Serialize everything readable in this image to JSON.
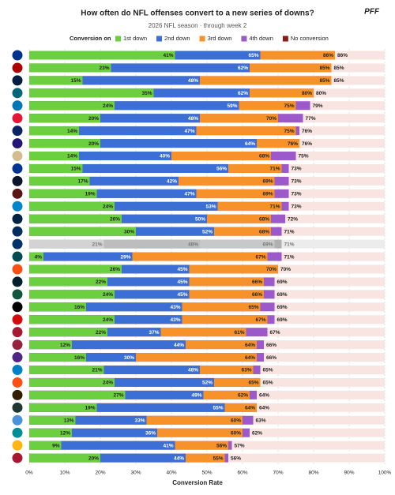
{
  "chart_data": {
    "type": "overlapping-bar",
    "title": "How often do NFL offenses convert to a new series of downs?",
    "subtitle": "2026 NFL season · through week 2",
    "brand": "PFF",
    "legend_title": "Conversion on",
    "x_label": "Conversion Rate",
    "xlim": [
      0,
      100
    ],
    "xticks": [
      {
        "value": 0,
        "label": "0%"
      },
      {
        "value": 10,
        "label": "10%"
      },
      {
        "value": 20,
        "label": "20%"
      },
      {
        "value": 30,
        "label": "30%"
      },
      {
        "value": 40,
        "label": "40%"
      },
      {
        "value": 50,
        "label": "50%"
      },
      {
        "value": 60,
        "label": "60%"
      },
      {
        "value": 70,
        "label": "70%"
      },
      {
        "value": 80,
        "label": "80%"
      },
      {
        "value": 90,
        "label": "90%"
      },
      {
        "value": 100,
        "label": "100%"
      }
    ],
    "grid": true,
    "categories": [
      null,
      null,
      null,
      null,
      null,
      null,
      null,
      null,
      null,
      null,
      null,
      null,
      null,
      null,
      null,
      null,
      null,
      null,
      null,
      null,
      null,
      null,
      null,
      null,
      null,
      null,
      null,
      null,
      null,
      null,
      null,
      null,
      null
    ],
    "muted_categories": [
      15
    ],
    "no_conversion": {
      "name": "No conversion",
      "color": "#8b1a1a"
    },
    "series": [
      {
        "name": "1st down",
        "color": "#6ccf3f",
        "values": [
          41,
          23,
          15,
          35,
          24,
          20,
          14,
          20,
          14,
          15,
          17,
          19,
          24,
          26,
          30,
          21,
          4,
          26,
          22,
          24,
          16,
          24,
          22,
          12,
          16,
          21,
          24,
          27,
          19,
          13,
          12,
          9,
          20
        ],
        "value_labels": [
          "41%",
          "23%",
          "15%",
          "35%",
          "24%",
          "20%",
          "14%",
          "20%",
          "14%",
          "15%",
          "17%",
          "19%",
          "24%",
          "26%",
          "30%",
          "21%",
          "4%",
          "26%",
          "22%",
          "24%",
          "16%",
          "24%",
          "22%",
          "12%",
          "16%",
          "21%",
          "24%",
          "27%",
          "19%",
          "13%",
          "12%",
          "9%",
          "20%"
        ]
      },
      {
        "name": "2nd down",
        "color": "#3b6fd6",
        "values": [
          65,
          62,
          48,
          62,
          59,
          48,
          47,
          64,
          40,
          56,
          42,
          47,
          53,
          50,
          52,
          48,
          29,
          45,
          45,
          45,
          43,
          43,
          37,
          44,
          30,
          48,
          52,
          49,
          55,
          33,
          36,
          41,
          44
        ],
        "value_labels": [
          "65%",
          "62%",
          "48%",
          "62%",
          "59%",
          "48%",
          "47%",
          "64%",
          "40%",
          "56%",
          "42%",
          "47%",
          "53%",
          "50%",
          "52%",
          "48%",
          "29%",
          "45%",
          "45%",
          "45%",
          "43%",
          "43%",
          "37%",
          "44%",
          "30%",
          "48%",
          "52%",
          "49%",
          "55%",
          "33%",
          "36%",
          "41%",
          "44%"
        ]
      },
      {
        "name": "3rd down",
        "color": "#f7922b",
        "values": [
          86,
          85,
          85,
          80,
          75,
          70,
          75,
          76,
          68,
          71,
          69,
          69,
          71,
          68,
          68,
          69,
          67,
          70,
          66,
          66,
          65,
          67,
          61,
          64,
          64,
          63,
          65,
          62,
          64,
          60,
          60,
          56,
          55
        ],
        "value_labels": [
          "86%",
          "85%",
          "85%",
          "80%",
          "75%",
          "70%",
          "75%",
          "76%",
          "68%",
          "71%",
          "69%",
          "69%",
          "71%",
          "68%",
          "68%",
          "69%",
          "67%",
          "70%",
          "66%",
          "66%",
          "65%",
          "67%",
          "61%",
          "64%",
          "64%",
          "63%",
          "65%",
          "62%",
          "64%",
          "60%",
          "60%",
          "56%",
          "55%"
        ]
      },
      {
        "name": "4th down",
        "color": "#9b59c9",
        "values": [
          86,
          85,
          85,
          80,
          79,
          77,
          76,
          76,
          75,
          73,
          73,
          73,
          73,
          72,
          71,
          71,
          71,
          70,
          69,
          69,
          69,
          69,
          67,
          66,
          66,
          65,
          65,
          64,
          64,
          63,
          62,
          57,
          56
        ],
        "value_labels": [
          "86%",
          "85%",
          "85%",
          "80%",
          "79%",
          "77%",
          "76%",
          "76%",
          "75%",
          "73%",
          "73%",
          "73%",
          "73%",
          "72%",
          "71%",
          "71%",
          "71%",
          "70%",
          "69%",
          "69%",
          "69%",
          "69%",
          "67%",
          "66%",
          "66%",
          "65%",
          "65%",
          "64%",
          "64%",
          "63%",
          "62%",
          "57%",
          "56%"
        ]
      }
    ]
  }
}
